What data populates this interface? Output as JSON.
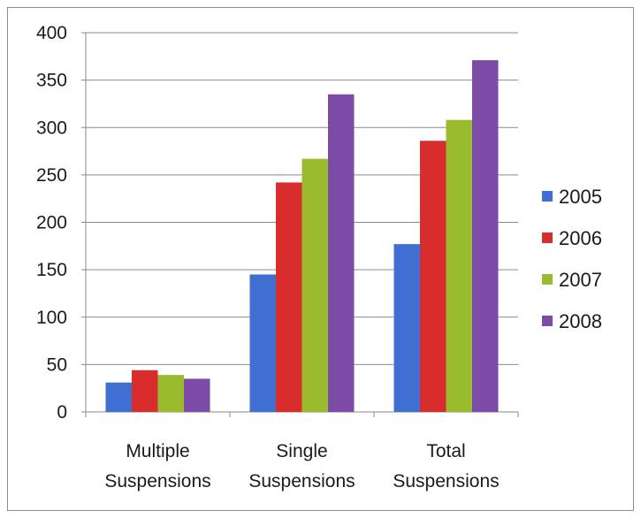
{
  "chart_data": {
    "type": "bar",
    "categories": [
      [
        "Multiple",
        "Suspensions"
      ],
      [
        "Single",
        "Suspensions"
      ],
      [
        "Total",
        "Suspensions"
      ]
    ],
    "series": [
      {
        "name": "2005",
        "color": "#3f6fd0",
        "values": [
          31,
          145,
          177
        ]
      },
      {
        "name": "2006",
        "color": "#d92d2d",
        "values": [
          44,
          242,
          286
        ]
      },
      {
        "name": "2007",
        "color": "#9bbb2f",
        "values": [
          39,
          267,
          308
        ]
      },
      {
        "name": "2008",
        "color": "#7b4ba6",
        "values": [
          35,
          335,
          371
        ]
      }
    ],
    "ylim": [
      0,
      400
    ],
    "yticks": [
      "0",
      "50",
      "100",
      "150",
      "200",
      "250",
      "300",
      "350",
      "400"
    ],
    "grid": true,
    "legend_position": "right",
    "title": "",
    "xlabel": "",
    "ylabel": ""
  }
}
